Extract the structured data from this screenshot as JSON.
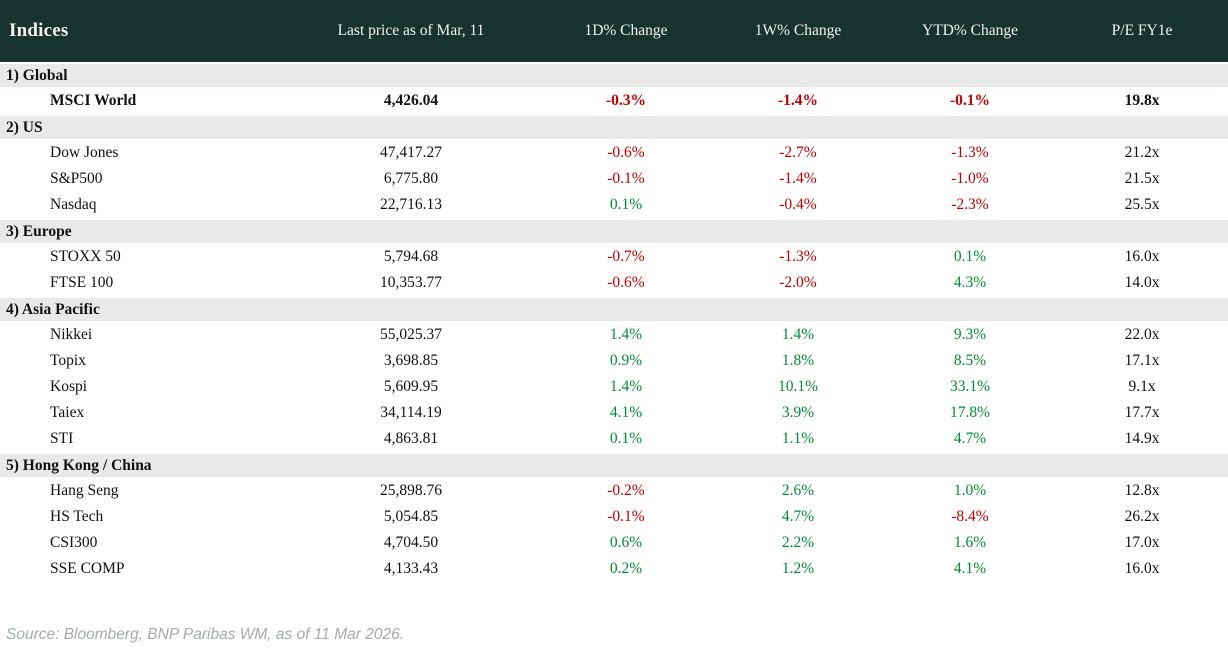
{
  "table": {
    "title": "Indices",
    "columns": [
      "Last price as of Mar, 11",
      "1D% Change",
      "1W% Change",
      "YTD% Change",
      "P/E FY1e"
    ],
    "sections": [
      {
        "label": "1) Global",
        "rows": [
          {
            "name": "MSCI World",
            "price": "4,426.04",
            "d1": "-0.3%",
            "w1": "-1.4%",
            "ytd": "-0.1%",
            "pe": "19.8x",
            "bold": true
          }
        ]
      },
      {
        "label": "2) US",
        "rows": [
          {
            "name": "Dow Jones",
            "price": "47,417.27",
            "d1": "-0.6%",
            "w1": "-2.7%",
            "ytd": "-1.3%",
            "pe": "21.2x",
            "bold": false
          },
          {
            "name": "S&P500",
            "price": "6,775.80",
            "d1": "-0.1%",
            "w1": "-1.4%",
            "ytd": "-1.0%",
            "pe": "21.5x",
            "bold": false
          },
          {
            "name": "Nasdaq",
            "price": "22,716.13",
            "d1": "0.1%",
            "w1": "-0.4%",
            "ytd": "-2.3%",
            "pe": "25.5x",
            "bold": false
          }
        ]
      },
      {
        "label": "3) Europe",
        "rows": [
          {
            "name": "STOXX 50",
            "price": "5,794.68",
            "d1": "-0.7%",
            "w1": "-1.3%",
            "ytd": "0.1%",
            "pe": "16.0x",
            "bold": false
          },
          {
            "name": "FTSE 100",
            "price": "10,353.77",
            "d1": "-0.6%",
            "w1": "-2.0%",
            "ytd": "4.3%",
            "pe": "14.0x",
            "bold": false
          }
        ]
      },
      {
        "label": "4) Asia Pacific",
        "rows": [
          {
            "name": "Nikkei",
            "price": "55,025.37",
            "d1": "1.4%",
            "w1": "1.4%",
            "ytd": "9.3%",
            "pe": "22.0x",
            "bold": false
          },
          {
            "name": "Topix",
            "price": "3,698.85",
            "d1": "0.9%",
            "w1": "1.8%",
            "ytd": "8.5%",
            "pe": "17.1x",
            "bold": false
          },
          {
            "name": "Kospi",
            "price": "5,609.95",
            "d1": "1.4%",
            "w1": "10.1%",
            "ytd": "33.1%",
            "pe": "9.1x",
            "bold": false
          },
          {
            "name": "Taiex",
            "price": "34,114.19",
            "d1": "4.1%",
            "w1": "3.9%",
            "ytd": "17.8%",
            "pe": "17.7x",
            "bold": false
          },
          {
            "name": "STI",
            "price": "4,863.81",
            "d1": "0.1%",
            "w1": "1.1%",
            "ytd": "4.7%",
            "pe": "14.9x",
            "bold": false
          }
        ]
      },
      {
        "label": "5) Hong Kong / China",
        "rows": [
          {
            "name": "Hang Seng",
            "price": "25,898.76",
            "d1": "-0.2%",
            "w1": "2.6%",
            "ytd": "1.0%",
            "pe": "12.8x",
            "bold": false
          },
          {
            "name": "HS Tech",
            "price": "5,054.85",
            "d1": "-0.1%",
            "w1": "4.7%",
            "ytd": "-8.4%",
            "pe": "26.2x",
            "bold": false
          },
          {
            "name": "CSI300",
            "price": "4,704.50",
            "d1": "0.6%",
            "w1": "2.2%",
            "ytd": "1.6%",
            "pe": "17.0x",
            "bold": false
          },
          {
            "name": "SSE COMP",
            "price": "4,133.43",
            "d1": "0.2%",
            "w1": "1.2%",
            "ytd": "4.1%",
            "pe": "16.0x",
            "bold": false
          }
        ]
      }
    ]
  },
  "footer": {
    "source": "Source: Bloomberg, BNP Paribas WM, as of 11 Mar 2026."
  },
  "colors": {
    "header_bg": "#17332d",
    "header_text": "#f3f2ec",
    "section_bg": "#e7eae7",
    "positive": "#008d36",
    "negative": "#c00000",
    "body_text": "#111111",
    "source_text": "#a3abb0"
  }
}
